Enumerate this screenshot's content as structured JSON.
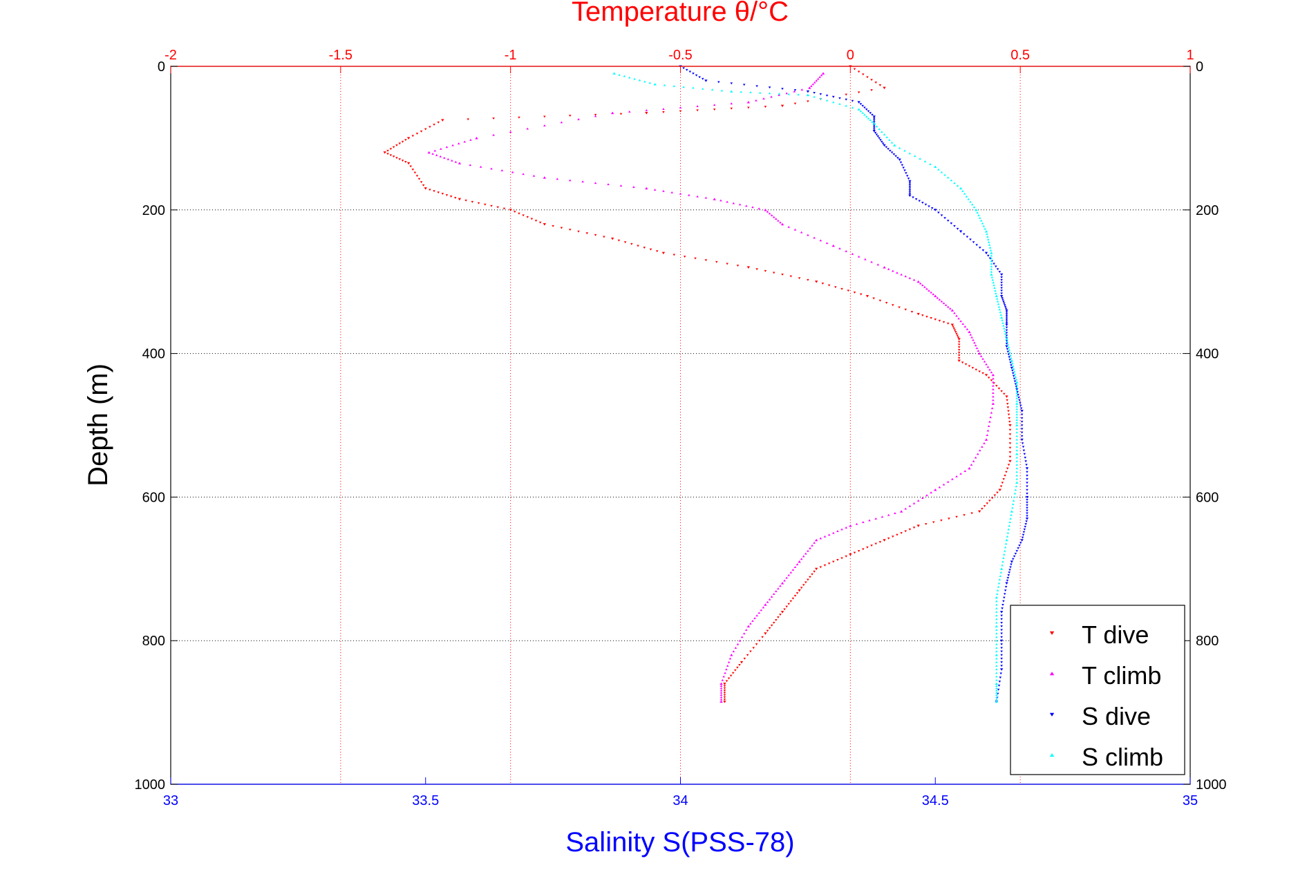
{
  "chart_data": {
    "type": "scatter",
    "title_top": "Temperature θ/°C",
    "xlabel_bottom": "Salinity S(PSS-78)",
    "ylabel": "Depth (m)",
    "top_axis": {
      "range": [
        -2,
        1
      ],
      "ticks": [
        "-2",
        "-1.5",
        "-1",
        "-0.5",
        "0",
        "0.5",
        "1"
      ],
      "values": [
        -2,
        -1.5,
        -1,
        -0.5,
        0,
        0.5,
        1
      ]
    },
    "bottom_axis": {
      "range": [
        33,
        35
      ],
      "ticks": [
        "33",
        "33.5",
        "34",
        "34.5",
        "35"
      ],
      "values": [
        33,
        33.5,
        34,
        34.5,
        35
      ]
    },
    "depth_axis": {
      "range": [
        0,
        1000
      ],
      "reversed": true,
      "ticks": [
        "0",
        "200",
        "400",
        "600",
        "800",
        "1000"
      ],
      "values": [
        0,
        200,
        400,
        600,
        800,
        1000
      ]
    },
    "grid": true,
    "legend_position": "bottom-right",
    "colors": {
      "T dive": "#ff0000",
      "T climb": "#ff00ff",
      "S dive": "#0000ff",
      "S climb": "#00ffff"
    },
    "series": [
      {
        "name": "T dive",
        "axis": "temperature",
        "color": "#ff0000",
        "marker": "triangle-down",
        "points": [
          [
            0.0,
            0
          ],
          [
            0.1,
            30
          ],
          [
            -0.2,
            55
          ],
          [
            -0.6,
            65
          ],
          [
            -1.2,
            75
          ],
          [
            -1.3,
            100
          ],
          [
            -1.37,
            120
          ],
          [
            -1.3,
            135
          ],
          [
            -1.25,
            170
          ],
          [
            -1.15,
            185
          ],
          [
            -1.0,
            200
          ],
          [
            -0.9,
            220
          ],
          [
            -0.7,
            240
          ],
          [
            -0.55,
            260
          ],
          [
            -0.3,
            280
          ],
          [
            -0.1,
            300
          ],
          [
            0.05,
            320
          ],
          [
            0.2,
            345
          ],
          [
            0.3,
            360
          ],
          [
            0.32,
            380
          ],
          [
            0.32,
            410
          ],
          [
            0.4,
            430
          ],
          [
            0.46,
            460
          ],
          [
            0.47,
            500
          ],
          [
            0.47,
            550
          ],
          [
            0.44,
            590
          ],
          [
            0.38,
            620
          ],
          [
            0.2,
            640
          ],
          [
            0.1,
            660
          ],
          [
            0.0,
            680
          ],
          [
            -0.1,
            700
          ],
          [
            -0.15,
            730
          ],
          [
            -0.2,
            760
          ],
          [
            -0.25,
            790
          ],
          [
            -0.32,
            830
          ],
          [
            -0.37,
            860
          ],
          [
            -0.37,
            885
          ]
        ]
      },
      {
        "name": "T climb",
        "axis": "temperature",
        "color": "#ff00ff",
        "marker": "triangle-up",
        "points": [
          [
            -0.08,
            10
          ],
          [
            -0.12,
            30
          ],
          [
            -0.3,
            50
          ],
          [
            -0.7,
            65
          ],
          [
            -1.1,
            100
          ],
          [
            -1.24,
            120
          ],
          [
            -1.15,
            135
          ],
          [
            -0.9,
            155
          ],
          [
            -0.6,
            170
          ],
          [
            -0.4,
            185
          ],
          [
            -0.25,
            200
          ],
          [
            -0.2,
            220
          ],
          [
            -0.05,
            250
          ],
          [
            0.1,
            280
          ],
          [
            0.2,
            300
          ],
          [
            0.25,
            320
          ],
          [
            0.3,
            340
          ],
          [
            0.35,
            370
          ],
          [
            0.38,
            400
          ],
          [
            0.42,
            430
          ],
          [
            0.42,
            470
          ],
          [
            0.4,
            520
          ],
          [
            0.35,
            560
          ],
          [
            0.25,
            590
          ],
          [
            0.15,
            620
          ],
          [
            0.0,
            640
          ],
          [
            -0.1,
            660
          ],
          [
            -0.15,
            690
          ],
          [
            -0.2,
            720
          ],
          [
            -0.25,
            750
          ],
          [
            -0.3,
            780
          ],
          [
            -0.35,
            820
          ],
          [
            -0.38,
            860
          ],
          [
            -0.38,
            885
          ]
        ]
      },
      {
        "name": "S dive",
        "axis": "salinity",
        "color": "#0000ff",
        "marker": "triangle-down",
        "points": [
          [
            34.0,
            0
          ],
          [
            34.05,
            20
          ],
          [
            34.25,
            35
          ],
          [
            34.35,
            50
          ],
          [
            34.38,
            70
          ],
          [
            34.38,
            90
          ],
          [
            34.4,
            110
          ],
          [
            34.43,
            130
          ],
          [
            34.45,
            160
          ],
          [
            34.45,
            180
          ],
          [
            34.5,
            200
          ],
          [
            34.55,
            230
          ],
          [
            34.6,
            260
          ],
          [
            34.63,
            290
          ],
          [
            34.63,
            320
          ],
          [
            34.64,
            340
          ],
          [
            34.64,
            360
          ],
          [
            34.64,
            390
          ],
          [
            34.65,
            420
          ],
          [
            34.66,
            450
          ],
          [
            34.67,
            480
          ],
          [
            34.67,
            520
          ],
          [
            34.68,
            560
          ],
          [
            34.68,
            600
          ],
          [
            34.68,
            630
          ],
          [
            34.67,
            660
          ],
          [
            34.65,
            690
          ],
          [
            34.64,
            720
          ],
          [
            34.63,
            760
          ],
          [
            34.63,
            800
          ],
          [
            34.63,
            840
          ],
          [
            34.62,
            885
          ]
        ]
      },
      {
        "name": "S climb",
        "axis": "salinity",
        "color": "#00ffff",
        "marker": "triangle-up",
        "points": [
          [
            33.87,
            10
          ],
          [
            33.95,
            25
          ],
          [
            34.1,
            35
          ],
          [
            34.25,
            40
          ],
          [
            34.35,
            60
          ],
          [
            34.38,
            80
          ],
          [
            34.42,
            110
          ],
          [
            34.5,
            140
          ],
          [
            34.55,
            170
          ],
          [
            34.58,
            200
          ],
          [
            34.6,
            230
          ],
          [
            34.61,
            260
          ],
          [
            34.61,
            290
          ],
          [
            34.62,
            320
          ],
          [
            34.63,
            350
          ],
          [
            34.64,
            380
          ],
          [
            34.65,
            410
          ],
          [
            34.66,
            440
          ],
          [
            34.66,
            470
          ],
          [
            34.66,
            500
          ],
          [
            34.66,
            540
          ],
          [
            34.66,
            580
          ],
          [
            34.65,
            620
          ],
          [
            34.64,
            660
          ],
          [
            34.63,
            700
          ],
          [
            34.62,
            740
          ],
          [
            34.62,
            780
          ],
          [
            34.62,
            820
          ],
          [
            34.62,
            860
          ],
          [
            34.62,
            885
          ]
        ]
      }
    ],
    "legend": [
      "T dive",
      "T climb",
      "S dive",
      "S climb"
    ]
  }
}
